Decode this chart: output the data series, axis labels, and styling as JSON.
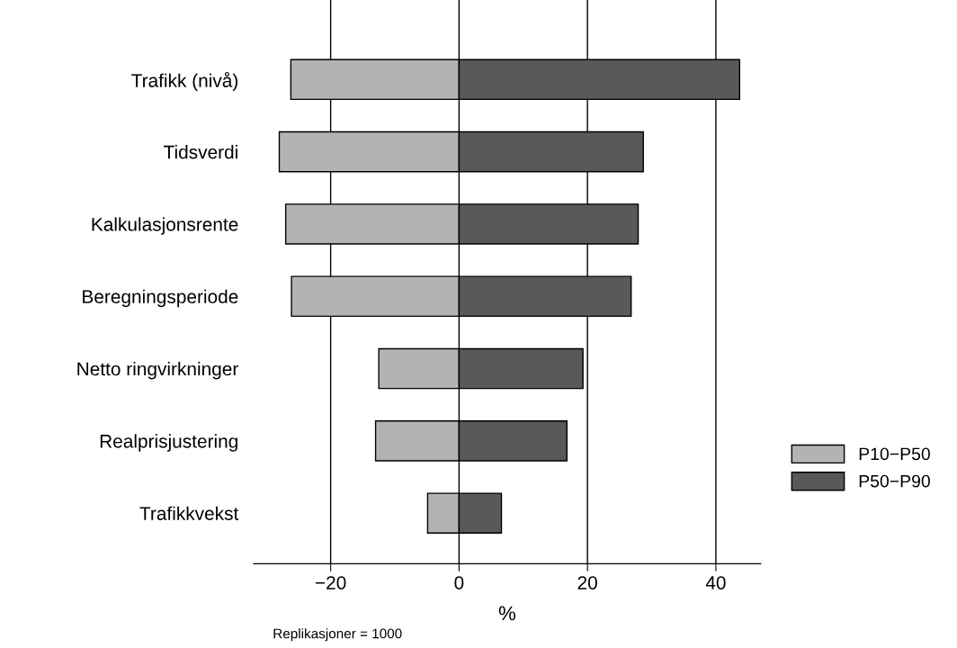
{
  "chart_data": {
    "type": "bar",
    "orientation": "horizontal",
    "stacked": true,
    "xlabel": "%",
    "categories": [
      "Trafikk (nivå)",
      "Tidsverdi",
      "Kalkulasjonsrente",
      "Beregningsperiode",
      "Netto ringvirkninger",
      "Realprisjustering",
      "Trafikkvekst"
    ],
    "series": [
      {
        "name": "P10−P50",
        "color": "#b3b3b3",
        "values": [
          -26.2,
          -28.0,
          -27.0,
          -26.1,
          -12.5,
          -13.0,
          -4.9
        ]
      },
      {
        "name": "P50−P90",
        "color": "#595959",
        "values": [
          43.7,
          28.7,
          27.9,
          26.8,
          19.3,
          16.8,
          6.6
        ]
      }
    ],
    "xlim": [
      -32,
      47
    ],
    "xticks": [
      -20,
      0,
      20,
      40
    ],
    "grid": "x",
    "legend": "right",
    "annotations": [
      "Replikasjoner = 1000"
    ]
  }
}
